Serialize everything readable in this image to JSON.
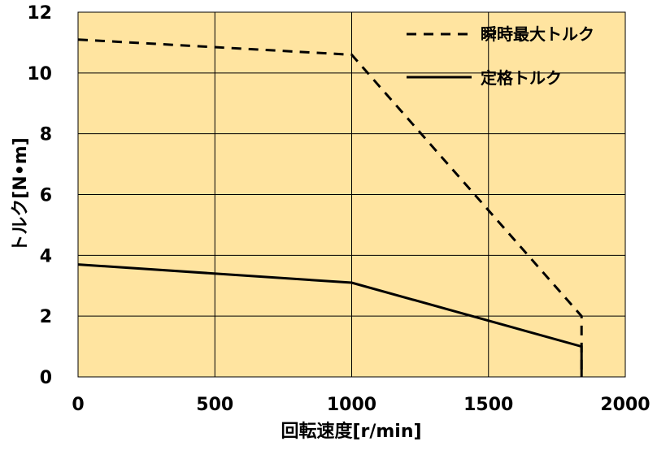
{
  "chart_data": {
    "type": "line",
    "xlabel": "回転速度[r/min]",
    "ylabel": "トルク[N•m]",
    "xlim": [
      0,
      2000
    ],
    "ylim": [
      0,
      12
    ],
    "xticks": [
      0,
      500,
      1000,
      1500,
      2000
    ],
    "yticks": [
      0,
      2,
      4,
      6,
      8,
      10,
      12
    ],
    "grid": true,
    "legend_position": "top-right",
    "plot_background": "#FFE4A0",
    "series": [
      {
        "name": "瞬時最大トルク",
        "style": "dashed",
        "color": "#000000",
        "x": [
          0,
          1000,
          1840,
          1840
        ],
        "y": [
          11.1,
          10.6,
          2.0,
          0
        ]
      },
      {
        "name": "定格トルク",
        "style": "solid",
        "color": "#000000",
        "x": [
          0,
          1000,
          1840,
          1840
        ],
        "y": [
          3.7,
          3.1,
          1.0,
          0
        ]
      }
    ]
  }
}
